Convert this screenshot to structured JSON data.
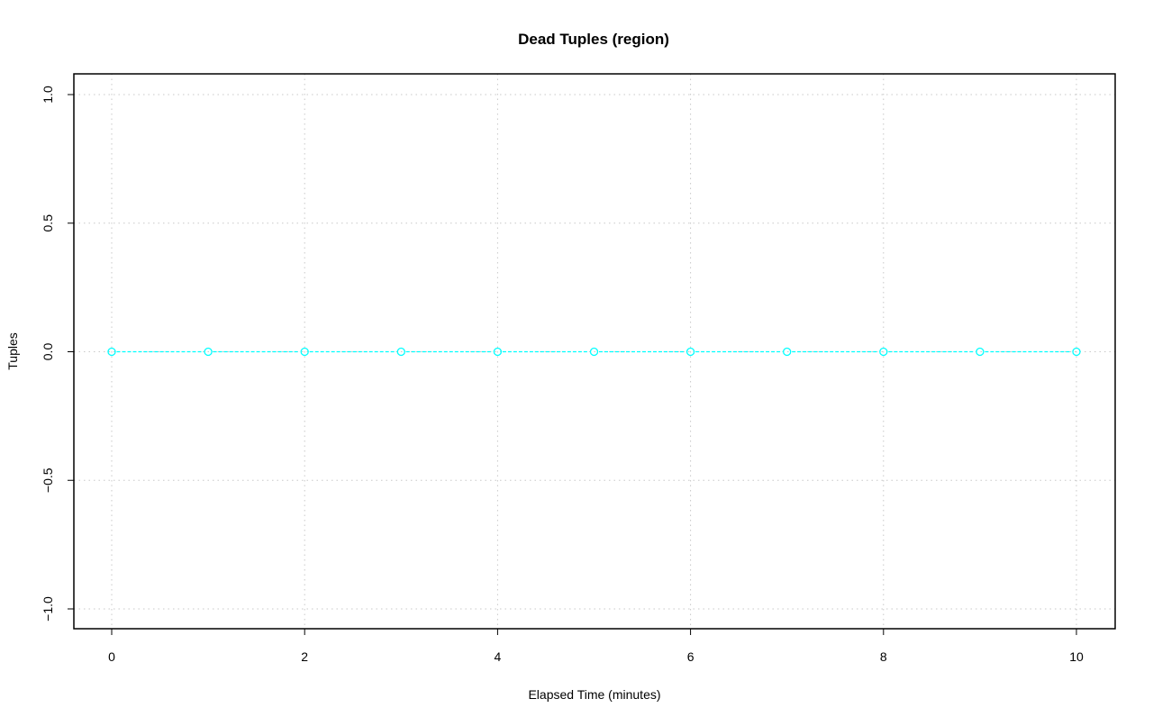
{
  "chart_data": {
    "type": "line",
    "title": "Dead Tuples (region)",
    "xlabel": "Elapsed Time (minutes)",
    "ylabel": "Tuples",
    "xlim": [
      0,
      10
    ],
    "ylim": [
      -1,
      1
    ],
    "x_ticks": [
      0,
      2,
      4,
      6,
      8,
      10
    ],
    "x_tick_labels": [
      "0",
      "2",
      "4",
      "6",
      "8",
      "10"
    ],
    "y_ticks": [
      -1,
      -0.5,
      0,
      0.5,
      1
    ],
    "y_tick_labels": [
      "−1.0",
      "−0.5",
      "0.0",
      "0.5",
      "1.0"
    ],
    "grid_x": [
      0,
      2,
      4,
      6,
      8,
      10
    ],
    "grid": true,
    "series": [
      {
        "x": [
          0,
          1,
          2,
          3,
          4,
          5,
          6,
          7,
          8,
          9,
          10
        ],
        "y": [
          0,
          0,
          0,
          0,
          0,
          0,
          0,
          0,
          0,
          0,
          0
        ],
        "color": "#00ffff",
        "line_style": "dashed",
        "marker": "open-circle"
      }
    ]
  }
}
